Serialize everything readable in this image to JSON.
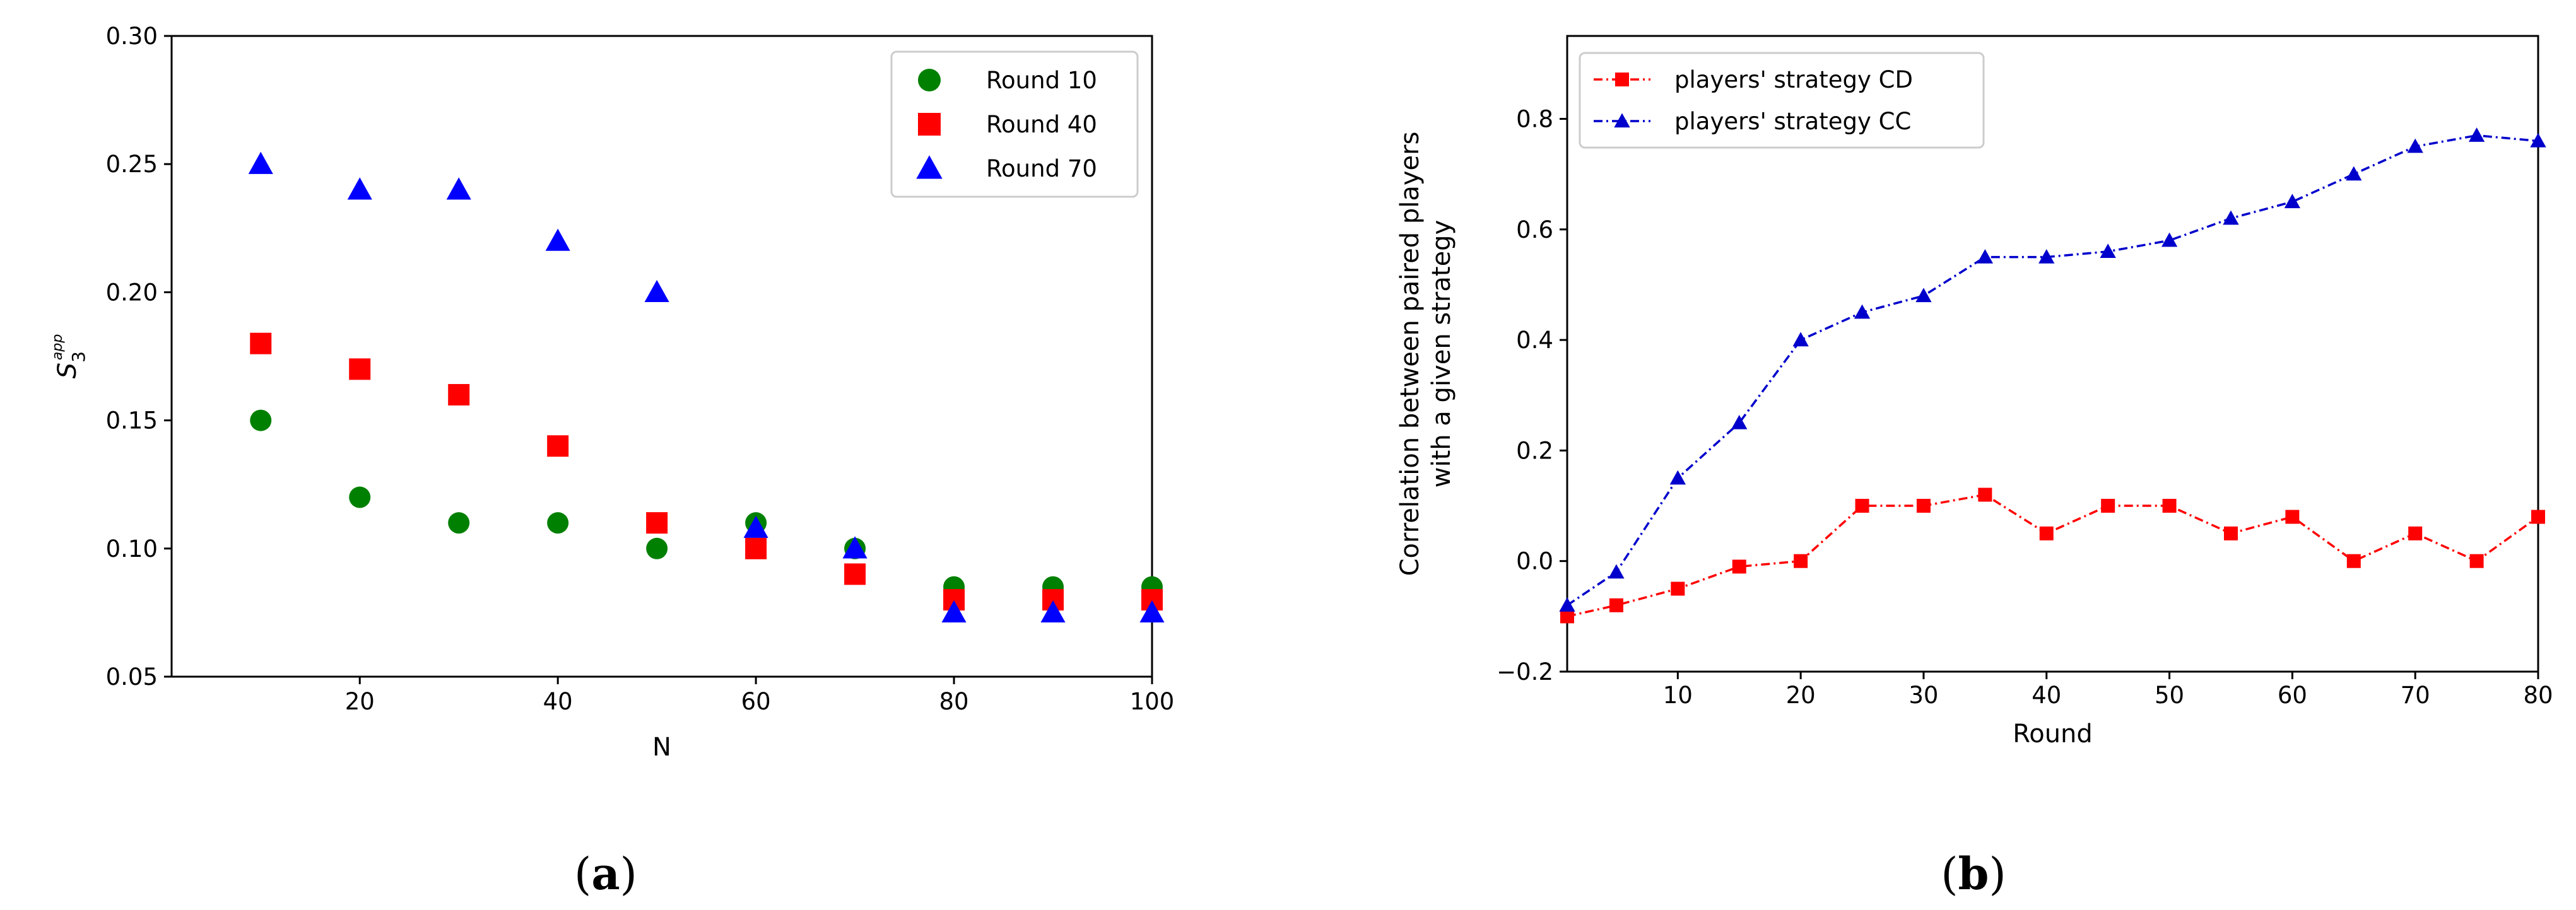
{
  "chart_data": [
    {
      "type": "scatter",
      "panel": "(a)",
      "xlabel": "N",
      "ylabel_base": "S",
      "ylabel_sub": "3",
      "ylabel_sup": "app",
      "xlim": [
        1,
        100
      ],
      "ylim": [
        0.05,
        0.3
      ],
      "xticks": [
        20,
        40,
        60,
        80,
        100
      ],
      "yticks": [
        "0.05",
        "0.10",
        "0.15",
        "0.20",
        "0.25",
        "0.30"
      ],
      "legend_position": "top-right",
      "grid": false,
      "x": [
        10,
        20,
        30,
        40,
        50,
        60,
        70,
        80,
        90,
        100
      ],
      "series": [
        {
          "name": "Round 10",
          "color": "#008000",
          "marker": "circle",
          "values": [
            0.15,
            0.12,
            0.11,
            0.11,
            0.1,
            0.11,
            0.1,
            0.085,
            0.085,
            0.085
          ]
        },
        {
          "name": "Round 40",
          "color": "#ff0000",
          "marker": "square",
          "values": [
            0.18,
            0.17,
            0.16,
            0.14,
            0.11,
            0.1,
            0.09,
            0.08,
            0.08,
            0.08
          ]
        },
        {
          "name": "Round 70",
          "color": "#0000ff",
          "marker": "triangle",
          "values": [
            0.25,
            0.24,
            0.24,
            0.22,
            0.2,
            0.108,
            0.1,
            0.075,
            0.075,
            0.075
          ]
        }
      ]
    },
    {
      "type": "line",
      "panel": "(b)",
      "xlabel": "Round",
      "ylabel_line1": "Correlation between paired players",
      "ylabel_line2": "with a given strategy",
      "xlim": [
        1,
        80
      ],
      "ylim": [
        -0.2,
        0.95
      ],
      "xticks": [
        10,
        20,
        30,
        40,
        50,
        60,
        70,
        80
      ],
      "yticks": [
        "−0.2",
        "0.0",
        "0.2",
        "0.4",
        "0.6",
        "0.8"
      ],
      "ytick_values": [
        -0.2,
        0.0,
        0.2,
        0.4,
        0.6,
        0.8
      ],
      "legend_position": "top-left",
      "grid": false,
      "x": [
        1,
        5,
        10,
        15,
        20,
        25,
        30,
        35,
        40,
        45,
        50,
        55,
        60,
        65,
        70,
        75,
        80
      ],
      "series": [
        {
          "name": "players' strategy CD",
          "color": "#ff0000",
          "marker": "square",
          "values": [
            -0.1,
            -0.08,
            -0.05,
            -0.01,
            0.0,
            0.1,
            0.1,
            0.12,
            0.05,
            0.1,
            0.1,
            0.05,
            0.08,
            0.0,
            0.05,
            0.0,
            0.08
          ]
        },
        {
          "name": "players' strategy CC",
          "color": "#0000cc",
          "marker": "triangle",
          "values": [
            -0.08,
            -0.02,
            0.15,
            0.25,
            0.4,
            0.45,
            0.48,
            0.55,
            0.55,
            0.56,
            0.58,
            0.62,
            0.65,
            0.7,
            0.75,
            0.77,
            0.76
          ]
        }
      ]
    }
  ],
  "captions": {
    "a_letter": "a",
    "b_letter": "b",
    "open": "(",
    "close": ")"
  }
}
